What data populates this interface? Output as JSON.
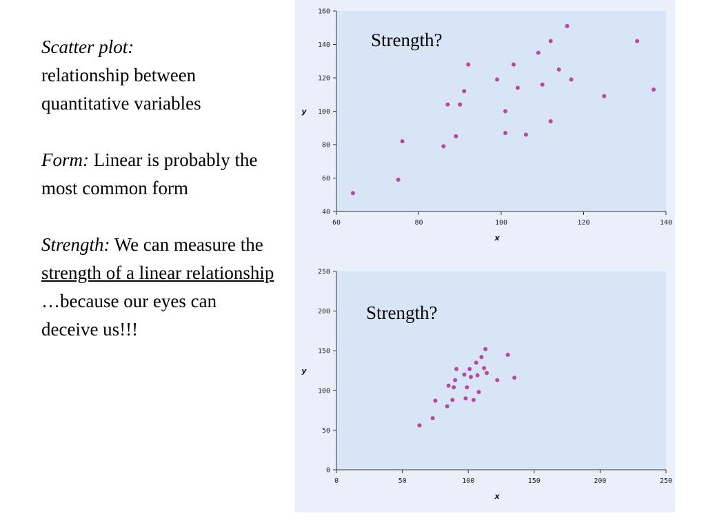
{
  "text": {
    "p1_label": "Scatter plot:",
    "p1_body": "relationship between quantitative variables",
    "p2_label": "Form:",
    "p2_body": " Linear is probably the most common form",
    "p3_label": "Strength:",
    "p3_body_a": "  We can measure the ",
    "p3_underlined": "strength of a linear relationship",
    "p3_body_b": " …because our eyes can deceive us!!!"
  },
  "colors": {
    "plot_bg": "#d8e5f6",
    "panel_bg": "#eaf0f9",
    "point": "#b9479f"
  },
  "chart_data": [
    {
      "type": "scatter",
      "title": "",
      "annotation": "Strength?",
      "xlabel": "x",
      "ylabel": "y",
      "xlim": [
        60,
        140
      ],
      "ylim": [
        40,
        160
      ],
      "xticks": [
        60,
        80,
        100,
        120,
        140
      ],
      "yticks": [
        40,
        60,
        80,
        100,
        120,
        140,
        160
      ],
      "grid": false,
      "points": [
        [
          64,
          51
        ],
        [
          75,
          59
        ],
        [
          76,
          82
        ],
        [
          86,
          79
        ],
        [
          87,
          104
        ],
        [
          89,
          85
        ],
        [
          90,
          104
        ],
        [
          91,
          112
        ],
        [
          92,
          128
        ],
        [
          99,
          119
        ],
        [
          101,
          100
        ],
        [
          101,
          87
        ],
        [
          103,
          128
        ],
        [
          104,
          114
        ],
        [
          106,
          86
        ],
        [
          109,
          135
        ],
        [
          110,
          116
        ],
        [
          112,
          94
        ],
        [
          112,
          142
        ],
        [
          114,
          125
        ],
        [
          116,
          151
        ],
        [
          117,
          119
        ],
        [
          125,
          109
        ],
        [
          133,
          142
        ],
        [
          137,
          113
        ]
      ]
    },
    {
      "type": "scatter",
      "title": "",
      "annotation": "Strength?",
      "xlabel": "x",
      "ylabel": "y",
      "xlim": [
        0,
        250
      ],
      "ylim": [
        0,
        250
      ],
      "xticks": [
        0,
        50,
        100,
        150,
        200,
        250
      ],
      "yticks": [
        0,
        50,
        100,
        150,
        200,
        250
      ],
      "grid": false,
      "points": [
        [
          63,
          56
        ],
        [
          73,
          65
        ],
        [
          75,
          87
        ],
        [
          84,
          80
        ],
        [
          85,
          106
        ],
        [
          88,
          88
        ],
        [
          89,
          104
        ],
        [
          90,
          113
        ],
        [
          91,
          127
        ],
        [
          97,
          120
        ],
        [
          98,
          90
        ],
        [
          99,
          104
        ],
        [
          101,
          127
        ],
        [
          102,
          117
        ],
        [
          104,
          88
        ],
        [
          106,
          135
        ],
        [
          107,
          119
        ],
        [
          108,
          98
        ],
        [
          110,
          142
        ],
        [
          112,
          128
        ],
        [
          113,
          152
        ],
        [
          114,
          122
        ],
        [
          122,
          113
        ],
        [
          130,
          145
        ],
        [
          135,
          116
        ]
      ]
    }
  ]
}
